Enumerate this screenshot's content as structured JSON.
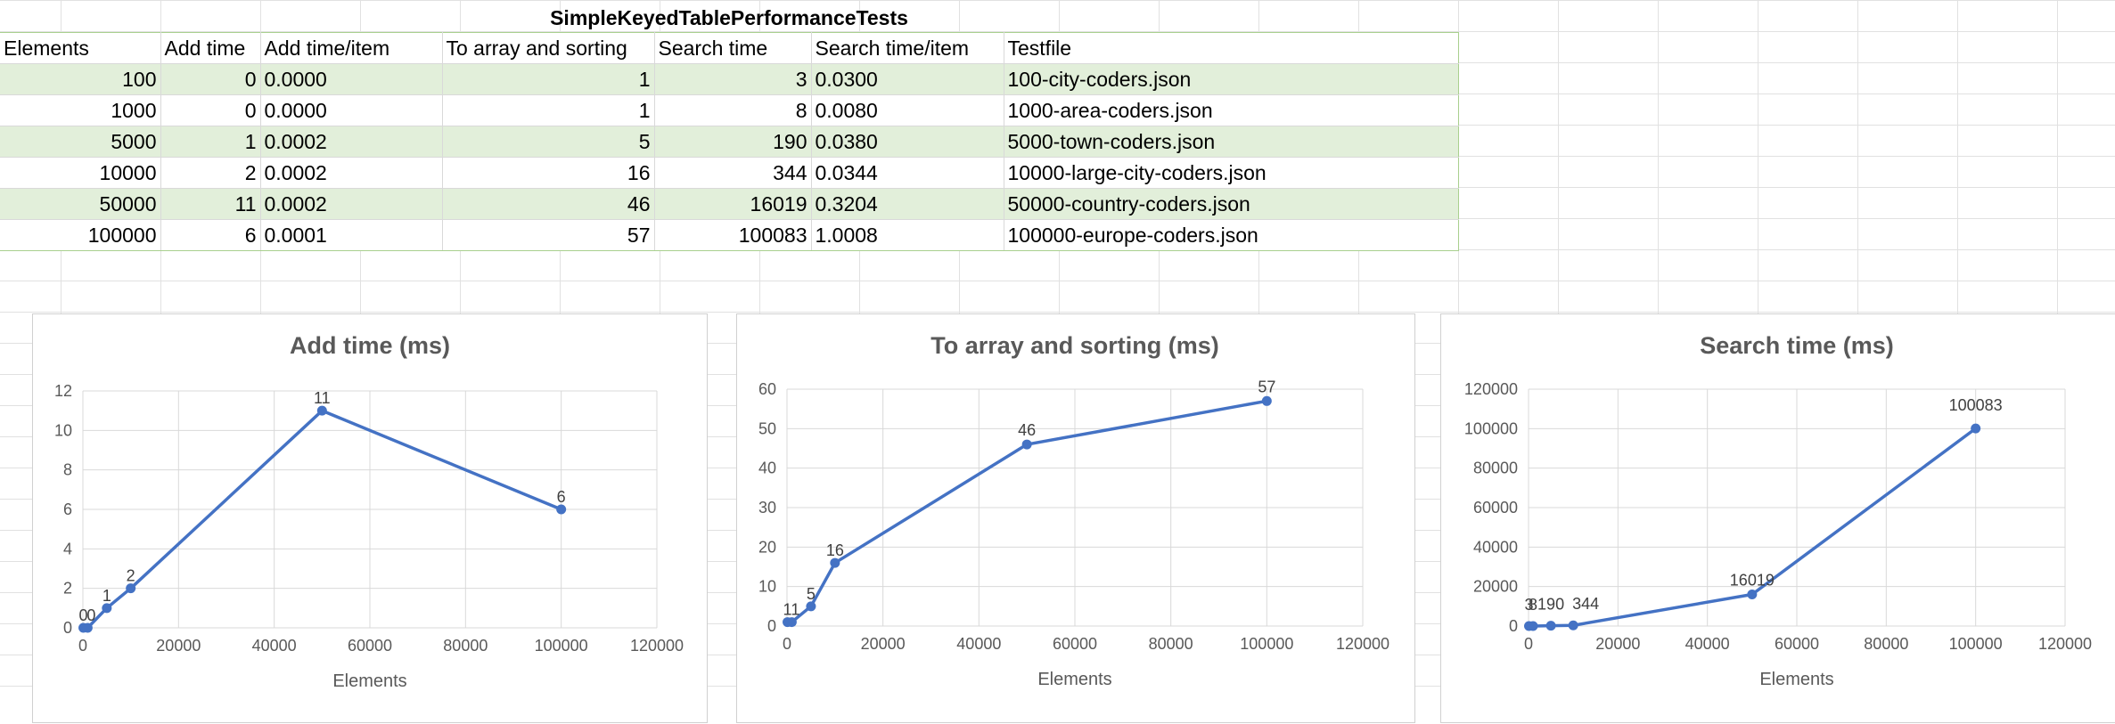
{
  "sheet": {
    "title": "SimpleKeyedTablePerformanceTests",
    "headers": [
      "Elements",
      "Add time",
      "Add time/item",
      "To array and sorting",
      "Search time",
      "Search time/item",
      "Testfile"
    ],
    "rows": [
      [
        "100",
        "0",
        "0.0000",
        "1",
        "3",
        "0.0300",
        "100-city-coders.json"
      ],
      [
        "1000",
        "0",
        "0.0000",
        "1",
        "8",
        "0.0080",
        "1000-area-coders.json"
      ],
      [
        "5000",
        "1",
        "0.0002",
        "5",
        "190",
        "0.0380",
        "5000-town-coders.json"
      ],
      [
        "10000",
        "2",
        "0.0002",
        "16",
        "344",
        "0.0344",
        "10000-large-city-coders.json"
      ],
      [
        "50000",
        "11",
        "0.0002",
        "46",
        "16019",
        "0.3204",
        "50000-country-coders.json"
      ],
      [
        "100000",
        "6",
        "0.0001",
        "57",
        "100083",
        "1.0008",
        "100000-europe-coders.json"
      ]
    ]
  },
  "chart_data": [
    {
      "type": "scatter",
      "title": "Add time (ms)",
      "xlabel": "Elements",
      "ylabel": "",
      "x": [
        100,
        1000,
        5000,
        10000,
        50000,
        100000
      ],
      "series": [
        {
          "values": [
            0,
            0,
            1,
            2,
            11,
            6
          ],
          "labels": [
            "0",
            "0",
            "1",
            "2",
            "11",
            "6"
          ]
        }
      ],
      "xlim": [
        0,
        120000
      ],
      "ylim": [
        0,
        12
      ],
      "xticks": [
        0,
        20000,
        40000,
        60000,
        80000,
        100000,
        120000
      ],
      "yticks": [
        0,
        2,
        4,
        6,
        8,
        10,
        12
      ],
      "grid": true,
      "color": "#4472c4"
    },
    {
      "type": "scatter",
      "title": "To array and sorting (ms)",
      "xlabel": "Elements",
      "ylabel": "",
      "x": [
        100,
        1000,
        5000,
        10000,
        50000,
        100000
      ],
      "series": [
        {
          "values": [
            1,
            1,
            5,
            16,
            46,
            57
          ],
          "labels": [
            "1",
            "1",
            "5",
            "16",
            "46",
            "57"
          ]
        }
      ],
      "xlim": [
        0,
        120000
      ],
      "ylim": [
        0,
        60
      ],
      "xticks": [
        0,
        20000,
        40000,
        60000,
        80000,
        100000,
        120000
      ],
      "yticks": [
        0,
        10,
        20,
        30,
        40,
        50,
        60
      ],
      "grid": true,
      "color": "#4472c4"
    },
    {
      "type": "scatter",
      "title": "Search time (ms)",
      "xlabel": "Elements",
      "ylabel": "",
      "x": [
        100,
        1000,
        5000,
        10000,
        50000,
        100000
      ],
      "series": [
        {
          "values": [
            3,
            8,
            190,
            344,
            16019,
            100083
          ],
          "labels": [
            "3",
            "8",
            "190",
            "344",
            "16019",
            "100083"
          ]
        }
      ],
      "xlim": [
        0,
        120000
      ],
      "ylim": [
        0,
        120000
      ],
      "xticks": [
        0,
        20000,
        40000,
        60000,
        80000,
        100000,
        120000
      ],
      "yticks": [
        0,
        20000,
        40000,
        60000,
        80000,
        100000,
        120000
      ],
      "grid": true,
      "color": "#4472c4"
    }
  ]
}
